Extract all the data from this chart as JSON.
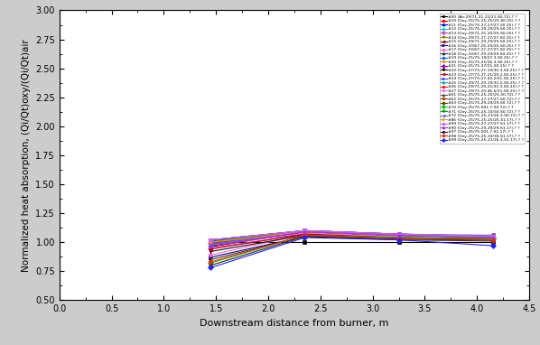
{
  "xlabel": "Downstream distance from burner, m",
  "ylabel": "Normalized heat absorption, (Qi/Qt)oxy/(Qi/Qt)air",
  "xlim": [
    0.0,
    4.5
  ],
  "ylim": [
    0.5,
    3.0
  ],
  "xticks": [
    0.0,
    0.5,
    1.0,
    1.5,
    2.0,
    2.5,
    3.0,
    3.5,
    4.0,
    4.5
  ],
  "yticks": [
    0.5,
    0.75,
    1.0,
    1.25,
    1.5,
    1.75,
    2.0,
    2.25,
    2.5,
    2.75,
    3.0
  ],
  "x_positions": [
    1.45,
    2.35,
    3.25,
    4.15
  ],
  "series": [
    {
      "label": "#00 (Air-29/71-21-21/21-S0.72)-? ?",
      "color": "#000000",
      "marker": "s",
      "y": [
        1.0,
        1.0,
        1.0,
        1.0
      ]
    },
    {
      "label": "#10 (Oxy-25/75-25-25/25-S0.25)-? ?",
      "color": "#ff0000",
      "marker": "o",
      "y": [
        1.0,
        1.08,
        1.05,
        1.06
      ]
    },
    {
      "label": "#11 (Oxy-25/75-27-27/27-S0.25)-? ?",
      "color": "#0000ff",
      "marker": "^",
      "y": [
        1.02,
        1.1,
        1.07,
        1.05
      ]
    },
    {
      "label": "#12 (Oxy-25/75-29-29/29-S0.25)-? ?",
      "color": "#00cccc",
      "marker": "p",
      "y": [
        0.97,
        1.09,
        1.06,
        1.04
      ]
    },
    {
      "label": "#13 (Oxy-29/71-25-25/25-S0.25)-? ?",
      "color": "#cc44cc",
      "marker": "D",
      "y": [
        0.95,
        1.07,
        1.04,
        1.03
      ]
    },
    {
      "label": "#14 (Oxy-29/71-27-27/27-S0.25)-? ?",
      "color": "#888800",
      "marker": "v",
      "y": [
        1.01,
        1.1,
        1.07,
        1.05
      ]
    },
    {
      "label": "#15 (Oxy-29/71-29-29/29-S0.25)-? ?",
      "color": "#880000",
      "marker": "<",
      "y": [
        0.96,
        1.09,
        1.06,
        1.04
      ]
    },
    {
      "label": "#16 (Oxy-33/67-25-25/25-S0.25)-? ?",
      "color": "#000088",
      "marker": ">",
      "y": [
        0.87,
        1.05,
        1.03,
        1.02
      ]
    },
    {
      "label": "#17 (Oxy-33/67-27-27/27-S0.25)-? ?",
      "color": "#ff66cc",
      "marker": "o",
      "y": [
        0.89,
        1.07,
        1.04,
        1.03
      ]
    },
    {
      "label": "#18 (Oxy-33/67-29-29/29-S0.25)-? ?",
      "color": "#333333",
      "marker": "^",
      "y": [
        0.85,
        1.05,
        1.02,
        1.01
      ]
    },
    {
      "label": "#19 (Oxy-25/75-19/27.3-S0.25)-? ?",
      "color": "#0066ff",
      "marker": "o",
      "y": [
        1.01,
        1.09,
        1.06,
        1.05
      ]
    },
    {
      "label": "#20 (Oxy-25/75-21/26.3-S0.25)-? ?",
      "color": "#ff8800",
      "marker": "s",
      "y": [
        1.0,
        1.08,
        1.05,
        1.05
      ]
    },
    {
      "label": "#21 (Oxy-25/75-37/21-S0.25)-? ?",
      "color": "#9900cc",
      "marker": "D",
      "y": [
        0.99,
        1.07,
        1.04,
        1.04
      ]
    },
    {
      "label": "#22 (Oxy-27/73-27-19/30.3-S0.25)-? ?",
      "color": "#111111",
      "marker": "v",
      "y": [
        0.92,
        1.06,
        1.03,
        1.02
      ]
    },
    {
      "label": "#23 (Oxy-27/73-27-21/29.2-S0.25)-? ?",
      "color": "#cc0000",
      "marker": "<",
      "y": [
        0.94,
        1.07,
        1.04,
        1.03
      ]
    },
    {
      "label": "#24 (Oxy-27/73-27-43.2/21-S0.25)-? ?",
      "color": "#4444ff",
      "marker": ">",
      "y": [
        0.98,
        1.09,
        1.06,
        1.05
      ]
    },
    {
      "label": "#25 (Oxy-29/71-29-19/32.5-S0.25)-? ?",
      "color": "#00aaaa",
      "marker": "^",
      "y": [
        0.97,
        1.09,
        1.06,
        1.04
      ]
    },
    {
      "label": "#26 (Oxy-29/71-29-21/32.3-S0.25)-? ?",
      "color": "#dd2200",
      "marker": "p",
      "y": [
        0.99,
        1.09,
        1.06,
        1.04
      ]
    },
    {
      "label": "#27 (Oxy-29/71-29-46.5/21-S0.25)-? ?",
      "color": "#ff66ff",
      "marker": "h",
      "y": [
        0.97,
        1.08,
        1.05,
        1.04
      ]
    },
    {
      "label": "#61 (Oxy-25/75-25-25/25-S0.72)-? ?",
      "color": "#555555",
      "marker": "^",
      "y": [
        1.0,
        1.09,
        1.06,
        1.05
      ]
    },
    {
      "label": "#62 (Oxy-25/75-27-27/27-S0.72)-? ?",
      "color": "#993300",
      "marker": "s",
      "y": [
        1.02,
        1.1,
        1.07,
        1.05
      ]
    },
    {
      "label": "#63 (Oxy-25/75-29-29/29-S0.72)-? ?",
      "color": "#664400",
      "marker": "o",
      "y": [
        0.97,
        1.09,
        1.06,
        1.04
      ]
    },
    {
      "label": "#70 (Oxy-25/75-S01.7-S0.72)-? ?",
      "color": "#00cc00",
      "marker": "D",
      "y": [
        0.82,
        1.06,
        1.04,
        1.03
      ]
    },
    {
      "label": "#71 (Oxy-25/75-25-10/30-S0.72)-? ?",
      "color": "#009900",
      "marker": "v",
      "y": [
        1.0,
        1.09,
        1.06,
        1.05
      ]
    },
    {
      "label": "#72 (Oxy-25/75-25-21/26.3-S0.72)-? ?",
      "color": "#6666ff",
      "marker": "<",
      "y": [
        0.98,
        1.1,
        1.07,
        1.06
      ]
    },
    {
      "label": "#86 (Oxy-25/75-25-25/25-S1.17)-? ?",
      "color": "#ff9900",
      "marker": ">",
      "y": [
        1.0,
        1.09,
        1.06,
        1.05
      ]
    },
    {
      "label": "#99 (Oxy-25/75-27-27/27-S1.17)-? ?",
      "color": "#cc66ff",
      "marker": "o",
      "y": [
        1.02,
        1.1,
        1.07,
        1.05
      ]
    },
    {
      "label": "#90 (Oxy-25/75-29-29/29-S1.17)-? ?",
      "color": "#9933ff",
      "marker": "^",
      "y": [
        0.97,
        1.09,
        1.06,
        1.04
      ]
    },
    {
      "label": "#97 (Oxy-25/75-S01.7-S1.17)-? ?",
      "color": "#222222",
      "marker": "p",
      "y": [
        0.8,
        1.05,
        1.03,
        1.02
      ]
    },
    {
      "label": "#98 (Oxy-25/75-25-10/30-S1.17)-? ?",
      "color": "#ff2200",
      "marker": "h",
      "y": [
        0.83,
        1.06,
        1.03,
        1.02
      ]
    },
    {
      "label": "#99 (Oxy-25/75-25-21/26.3-S1.17)-? ?",
      "color": "#2222ff",
      "marker": "D",
      "y": [
        0.78,
        1.04,
        1.02,
        0.97
      ]
    }
  ],
  "figsize": [
    5.98,
    3.82
  ],
  "dpi": 100,
  "outer_border_color": "#cccccc",
  "bg_color": "#ffffff"
}
